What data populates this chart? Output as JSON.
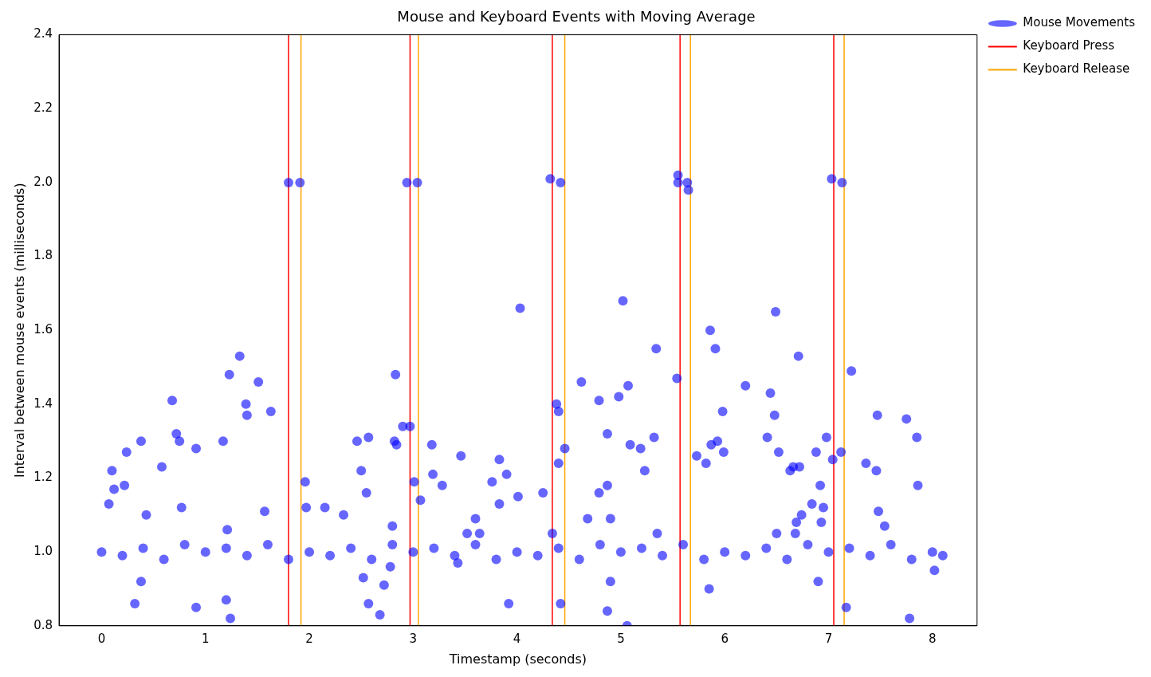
{
  "chart_data": {
    "type": "scatter",
    "title": "Mouse and Keyboard Events with Moving Average",
    "xlabel": "Timestamp (seconds)",
    "ylabel": "Interval between mouse events (milliseconds)",
    "xlim": [
      -0.41,
      8.43
    ],
    "xticks": [
      0,
      1,
      2,
      3,
      4,
      5,
      6,
      7,
      8
    ],
    "ylim": [
      0.8,
      2.4
    ],
    "yticks": [
      0.8,
      {
        "value": 1,
        "label": "1.0"
      },
      1.2,
      1.4,
      1.6,
      1.8,
      {
        "value": 2,
        "label": "2.0"
      },
      2.2,
      2.4
    ],
    "grid": false,
    "legend": "top right",
    "marker": "circle",
    "series": [
      {
        "name": "Mouse Movements",
        "color": "#0000ff",
        "x": [
          0.07,
          0.1,
          0.12,
          0.22,
          0.24,
          0.32,
          0.38,
          0.38,
          0.43,
          0.58,
          0.68,
          0.72,
          0.75,
          0.77,
          0.91,
          0.91,
          1.17,
          1.2,
          1.21,
          1.23,
          1.24,
          1.33,
          1.39,
          1.4,
          1.51,
          1.57,
          1.63,
          1.8,
          1.91,
          1.96,
          1.97,
          2.15,
          2.33,
          2.46,
          2.5,
          2.52,
          2.55,
          2.57,
          2.57,
          2.68,
          2.72,
          2.78,
          2.8,
          2.82,
          2.83,
          2.84,
          2.9,
          2.94,
          2.97,
          3.01,
          3.04,
          3.07,
          3.18,
          3.19,
          3.28,
          3.43,
          3.46,
          3.52,
          3.6,
          3.64,
          3.76,
          3.83,
          3.83,
          3.9,
          3.92,
          4.01,
          4.03,
          4.25,
          4.32,
          4.34,
          4.38,
          4.4,
          4.4,
          4.42,
          4.42,
          4.46,
          4.62,
          4.68,
          4.79,
          4.79,
          4.87,
          4.87,
          4.87,
          4.9,
          4.9,
          4.98,
          5.02,
          5.06,
          5.07,
          5.09,
          5.19,
          5.23,
          5.32,
          5.34,
          5.35,
          5.54,
          5.55,
          5.55,
          5.64,
          5.65,
          5.73,
          5.82,
          5.85,
          5.86,
          5.87,
          5.91,
          5.93,
          5.98,
          5.99,
          6.2,
          6.41,
          6.44,
          6.48,
          6.49,
          6.5,
          6.52,
          6.63,
          6.66,
          6.68,
          6.69,
          6.71,
          6.72,
          6.74,
          6.84,
          6.88,
          6.9,
          6.92,
          6.93,
          6.95,
          6.98,
          7.03,
          7.04,
          7.12,
          7.13,
          7.17,
          7.22,
          7.36,
          7.46,
          7.47,
          7.48,
          7.54,
          7.75,
          7.78,
          7.85,
          7.86,
          8.02,
          0,
          0.2,
          0.4,
          0.6,
          0.8,
          1,
          1.2,
          1.4,
          1.6,
          1.8,
          2,
          2.2,
          2.4,
          2.6,
          2.8,
          3,
          3.2,
          3.4,
          3.6,
          3.8,
          4,
          4.2,
          4.4,
          4.6,
          4.8,
          5,
          5.2,
          5.4,
          5.6,
          5.8,
          6,
          6.2,
          6.4,
          6.6,
          6.8,
          7,
          7.2,
          7.4,
          7.6,
          7.8,
          8,
          8.1
        ],
        "values": [
          1.13,
          1.22,
          1.17,
          1.18,
          1.27,
          0.86,
          1.3,
          0.92,
          1.1,
          1.23,
          1.41,
          1.32,
          1.3,
          1.12,
          1.28,
          0.85,
          1.3,
          0.87,
          1.06,
          1.48,
          0.82,
          1.53,
          1.4,
          1.37,
          1.46,
          1.11,
          1.38,
          2.0,
          2.0,
          1.19,
          1.12,
          1.12,
          1.1,
          1.3,
          1.22,
          0.93,
          1.16,
          1.31,
          0.86,
          0.83,
          0.91,
          0.96,
          1.07,
          1.3,
          1.48,
          1.29,
          1.34,
          2.0,
          1.34,
          1.19,
          2.0,
          1.14,
          1.29,
          1.21,
          1.18,
          0.97,
          1.26,
          1.05,
          1.09,
          1.05,
          1.19,
          1.25,
          1.13,
          1.21,
          0.86,
          1.15,
          1.66,
          1.16,
          2.01,
          1.05,
          1.4,
          1.38,
          1.24,
          2.0,
          0.86,
          1.28,
          1.46,
          1.09,
          1.41,
          1.16,
          1.32,
          1.18,
          0.84,
          1.09,
          0.92,
          1.42,
          1.68,
          0.8,
          1.45,
          1.29,
          1.28,
          1.22,
          1.31,
          1.55,
          1.05,
          1.47,
          2.02,
          2.0,
          2.0,
          1.98,
          1.26,
          1.24,
          0.9,
          1.6,
          1.29,
          1.55,
          1.3,
          1.38,
          1.27,
          1.45,
          1.31,
          1.43,
          1.37,
          1.65,
          1.05,
          1.27,
          1.22,
          1.23,
          1.05,
          1.08,
          1.53,
          1.23,
          1.1,
          1.13,
          1.27,
          0.92,
          1.18,
          1.08,
          1.12,
          1.31,
          2.01,
          1.25,
          1.27,
          2.0,
          0.85,
          1.49,
          1.24,
          1.22,
          1.37,
          1.11,
          1.07,
          1.36,
          0.82,
          1.31,
          1.18,
          0.95,
          1,
          0.99,
          1.01,
          0.98,
          1.02,
          1,
          1.01,
          0.99,
          1.02,
          0.98,
          1,
          0.99,
          1.01,
          0.98,
          1.02,
          1,
          1.01,
          0.99,
          1.02,
          0.98,
          1,
          0.99,
          1.01,
          0.98,
          1.02,
          1,
          1.01,
          0.99,
          1.02,
          0.98,
          1,
          0.99,
          1.01,
          0.98,
          1.02,
          1,
          1.01,
          0.99,
          1.02,
          0.98,
          1,
          0.99
        ]
      },
      {
        "type": "line",
        "name": "Keyboard Press",
        "color": "#ff0000",
        "marker": "none",
        "x": [
          1.8,
          1.8,
          2.97,
          2.97,
          4.34,
          4.34,
          5.57,
          5.57,
          7.05,
          7.05
        ],
        "values": [
          0.8,
          2.4,
          2.4,
          0.8,
          0.8,
          2.4,
          2.4,
          0.8,
          0.8,
          2.4
        ]
      },
      {
        "type": "line",
        "name": "Keyboard Release",
        "color": "#ffa500",
        "marker": "none",
        "x": [
          1.92,
          1.92,
          3.05,
          3.05,
          4.46,
          4.46,
          5.67,
          5.67,
          7.15,
          7.15
        ],
        "values": [
          0.8,
          2.4,
          2.4,
          0.8,
          0.8,
          2.4,
          2.4,
          0.8,
          0.8,
          2.4
        ]
      }
    ]
  }
}
